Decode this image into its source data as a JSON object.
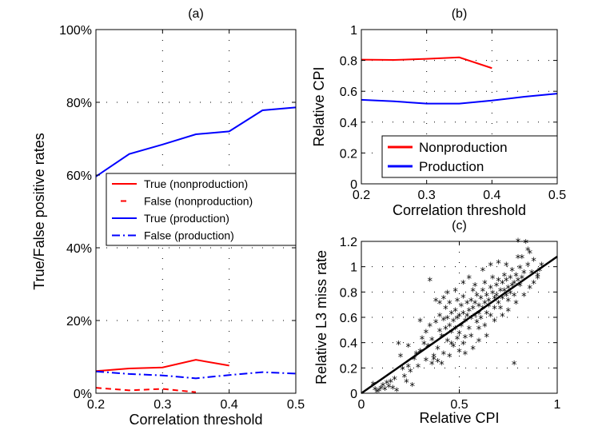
{
  "chart_data": [
    {
      "id": "a",
      "type": "line",
      "title": "(a)",
      "xlabel": "Correlation threshold",
      "ylabel": "True/False positive rates",
      "xlim": [
        0.2,
        0.5
      ],
      "ylim": [
        0,
        100
      ],
      "xticks": [
        "0.2",
        "0.3",
        "0.4",
        "0.5"
      ],
      "yticks": [
        "0%",
        "20%",
        "40%",
        "60%",
        "80%",
        "100%"
      ],
      "legend": "center-left",
      "series": [
        {
          "name": "True (nonproduction)",
          "color": "#ff0000",
          "style": "solid",
          "x": [
            0.2,
            0.25,
            0.3,
            0.35,
            0.4
          ],
          "y": [
            6.1,
            6.8,
            7.1,
            9.2,
            7.6
          ]
        },
        {
          "name": "False (nonproduction)",
          "color": "#ff0000",
          "style": "dashed",
          "x": [
            0.2,
            0.25,
            0.3,
            0.35
          ],
          "y": [
            1.5,
            0.8,
            1.2,
            0.3
          ]
        },
        {
          "name": "True (production)",
          "color": "#0000ff",
          "style": "solid",
          "x": [
            0.2,
            0.25,
            0.3,
            0.35,
            0.4,
            0.45,
            0.5
          ],
          "y": [
            59.6,
            65.8,
            68.4,
            71.2,
            72.0,
            77.8,
            78.6
          ]
        },
        {
          "name": "False (production)",
          "color": "#0000ff",
          "style": "dashdot",
          "x": [
            0.2,
            0.25,
            0.3,
            0.35,
            0.4,
            0.45,
            0.5
          ],
          "y": [
            6.0,
            5.3,
            4.9,
            4.1,
            5.0,
            5.8,
            5.4
          ]
        }
      ]
    },
    {
      "id": "b",
      "type": "line",
      "title": "(b)",
      "xlabel": "Correlation threshold",
      "ylabel": "Relative CPI",
      "xlim": [
        0.2,
        0.5
      ],
      "ylim": [
        0,
        1
      ],
      "xticks": [
        "0.2",
        "0.3",
        "0.4",
        "0.5"
      ],
      "yticks": [
        "0",
        "0.2",
        "0.4",
        "0.6",
        "0.8",
        "1"
      ],
      "legend": "lower-left",
      "series": [
        {
          "name": "Nonproduction",
          "color": "#ff0000",
          "style": "solid",
          "x": [
            0.2,
            0.25,
            0.3,
            0.35,
            0.4
          ],
          "y": [
            0.805,
            0.803,
            0.81,
            0.82,
            0.75
          ]
        },
        {
          "name": "Production",
          "color": "#0000ff",
          "style": "solid",
          "x": [
            0.2,
            0.25,
            0.3,
            0.35,
            0.4,
            0.45,
            0.5
          ],
          "y": [
            0.545,
            0.535,
            0.52,
            0.52,
            0.54,
            0.565,
            0.585
          ]
        }
      ]
    },
    {
      "id": "c",
      "type": "scatter",
      "title": "(c)",
      "xlabel": "Relative CPI",
      "ylabel": "Relative L3 miss rate",
      "xlim": [
        0,
        1
      ],
      "ylim": [
        0,
        1.2
      ],
      "xticks": [
        "0",
        "0.5",
        "1"
      ],
      "yticks": [
        "0",
        "0.2",
        "0.4",
        "0.6",
        "0.8",
        "1",
        "1.2"
      ],
      "fit": {
        "x": [
          0,
          1
        ],
        "y": [
          0.0,
          1.08
        ]
      },
      "points": [
        [
          0.06,
          0.06
        ],
        [
          0.07,
          0.02
        ],
        [
          0.08,
          0.0
        ],
        [
          0.09,
          0.01
        ],
        [
          0.1,
          0.03
        ],
        [
          0.11,
          0.05
        ],
        [
          0.12,
          0.02
        ],
        [
          0.13,
          0.07
        ],
        [
          0.14,
          0.04
        ],
        [
          0.15,
          0.08
        ],
        [
          0.16,
          0.03
        ],
        [
          0.17,
          0.1
        ],
        [
          0.18,
          0.01
        ],
        [
          0.2,
          0.28
        ],
        [
          0.21,
          0.18
        ],
        [
          0.22,
          0.12
        ],
        [
          0.23,
          0.08
        ],
        [
          0.24,
          0.2
        ],
        [
          0.25,
          0.16
        ],
        [
          0.26,
          0.05
        ],
        [
          0.27,
          0.26
        ],
        [
          0.28,
          0.3
        ],
        [
          0.3,
          0.32
        ],
        [
          0.31,
          0.42
        ],
        [
          0.32,
          0.38
        ],
        [
          0.33,
          0.47
        ],
        [
          0.34,
          0.36
        ],
        [
          0.35,
          0.52
        ],
        [
          0.36,
          0.41
        ],
        [
          0.37,
          0.28
        ],
        [
          0.38,
          0.55
        ],
        [
          0.39,
          0.34
        ],
        [
          0.4,
          0.48
        ],
        [
          0.4,
          0.6
        ],
        [
          0.41,
          0.44
        ],
        [
          0.42,
          0.57
        ],
        [
          0.42,
          0.3
        ],
        [
          0.43,
          0.5
        ],
        [
          0.43,
          0.66
        ],
        [
          0.44,
          0.4
        ],
        [
          0.44,
          0.58
        ],
        [
          0.45,
          0.52
        ],
        [
          0.45,
          0.7
        ],
        [
          0.46,
          0.47
        ],
        [
          0.46,
          0.62
        ],
        [
          0.47,
          0.56
        ],
        [
          0.47,
          0.36
        ],
        [
          0.48,
          0.64
        ],
        [
          0.48,
          0.5
        ],
        [
          0.49,
          0.58
        ],
        [
          0.49,
          0.72
        ],
        [
          0.5,
          0.46
        ],
        [
          0.5,
          0.6
        ],
        [
          0.51,
          0.68
        ],
        [
          0.51,
          0.52
        ],
        [
          0.52,
          0.62
        ],
        [
          0.52,
          0.75
        ],
        [
          0.53,
          0.56
        ],
        [
          0.53,
          0.43
        ],
        [
          0.54,
          0.7
        ],
        [
          0.54,
          0.6
        ],
        [
          0.55,
          0.64
        ],
        [
          0.55,
          0.5
        ],
        [
          0.56,
          0.72
        ],
        [
          0.56,
          0.58
        ],
        [
          0.57,
          0.66
        ],
        [
          0.57,
          0.8
        ],
        [
          0.58,
          0.6
        ],
        [
          0.58,
          0.7
        ],
        [
          0.59,
          0.55
        ],
        [
          0.59,
          0.76
        ],
        [
          0.6,
          0.68
        ],
        [
          0.6,
          0.62
        ],
        [
          0.61,
          0.74
        ],
        [
          0.61,
          0.58
        ],
        [
          0.62,
          0.8
        ],
        [
          0.62,
          0.66
        ],
        [
          0.63,
          0.7
        ],
        [
          0.63,
          0.86
        ],
        [
          0.64,
          0.62
        ],
        [
          0.64,
          0.76
        ],
        [
          0.65,
          0.72
        ],
        [
          0.65,
          0.68
        ],
        [
          0.66,
          0.82
        ],
        [
          0.66,
          0.6
        ],
        [
          0.67,
          0.78
        ],
        [
          0.67,
          0.9
        ],
        [
          0.68,
          0.74
        ],
        [
          0.68,
          0.66
        ],
        [
          0.69,
          0.84
        ],
        [
          0.69,
          0.76
        ],
        [
          0.7,
          0.7
        ],
        [
          0.7,
          0.88
        ],
        [
          0.71,
          0.8
        ],
        [
          0.71,
          0.66
        ],
        [
          0.72,
          0.86
        ],
        [
          0.72,
          0.74
        ],
        [
          0.73,
          0.92
        ],
        [
          0.73,
          0.8
        ],
        [
          0.74,
          0.76
        ],
        [
          0.74,
          0.88
        ],
        [
          0.75,
          0.82
        ],
        [
          0.75,
          0.72
        ],
        [
          0.76,
          0.9
        ],
        [
          0.76,
          0.78
        ],
        [
          0.77,
          0.84
        ],
        [
          0.77,
          0.96
        ],
        [
          0.78,
          0.86
        ],
        [
          0.78,
          0.76
        ],
        [
          0.79,
          0.92
        ],
        [
          0.8,
          0.88
        ],
        [
          0.8,
          1.19
        ],
        [
          0.81,
          0.84
        ],
        [
          0.81,
          0.98
        ],
        [
          0.82,
          0.9
        ],
        [
          0.82,
          1.06
        ],
        [
          0.83,
          0.94
        ],
        [
          0.84,
          1.18
        ],
        [
          0.85,
          1.0
        ],
        [
          0.86,
          1.1
        ],
        [
          0.87,
          0.94
        ],
        [
          0.88,
          1.04
        ],
        [
          0.9,
          0.92
        ],
        [
          0.91,
          0.96
        ],
        [
          0.92,
          1.0
        ],
        [
          0.78,
          0.22
        ],
        [
          0.35,
          0.88
        ],
        [
          0.42,
          0.74
        ],
        [
          0.44,
          0.78
        ],
        [
          0.52,
          0.86
        ],
        [
          0.55,
          0.9
        ],
        [
          0.62,
          0.96
        ],
        [
          0.48,
          0.8
        ],
        [
          0.38,
          0.72
        ],
        [
          0.58,
          0.84
        ],
        [
          0.66,
          1.0
        ],
        [
          0.7,
          1.02
        ],
        [
          0.3,
          0.56
        ],
        [
          0.33,
          0.25
        ],
        [
          0.36,
          0.22
        ],
        [
          0.37,
          0.26
        ],
        [
          0.39,
          0.24
        ],
        [
          0.41,
          0.22
        ],
        [
          0.45,
          0.28
        ],
        [
          0.5,
          0.32
        ],
        [
          0.53,
          0.3
        ],
        [
          0.57,
          0.34
        ],
        [
          0.6,
          0.4
        ],
        [
          0.64,
          0.44
        ],
        [
          0.4,
          0.7
        ],
        [
          0.19,
          0.38
        ],
        [
          0.24,
          0.36
        ],
        [
          0.29,
          0.2
        ],
        [
          0.46,
          0.38
        ],
        [
          0.49,
          0.42
        ],
        [
          0.52,
          0.38
        ],
        [
          0.56,
          0.44
        ],
        [
          0.6,
          0.5
        ],
        [
          0.63,
          0.52
        ],
        [
          0.68,
          0.56
        ],
        [
          0.72,
          0.6
        ],
        [
          0.75,
          0.64
        ],
        [
          0.79,
          0.7
        ],
        [
          0.83,
          0.76
        ],
        [
          0.86,
          0.82
        ],
        [
          0.88,
          0.86
        ],
        [
          0.9,
          0.9
        ],
        [
          0.74,
          1.0
        ],
        [
          0.8,
          1.06
        ],
        [
          0.85,
          1.12
        ]
      ]
    }
  ]
}
